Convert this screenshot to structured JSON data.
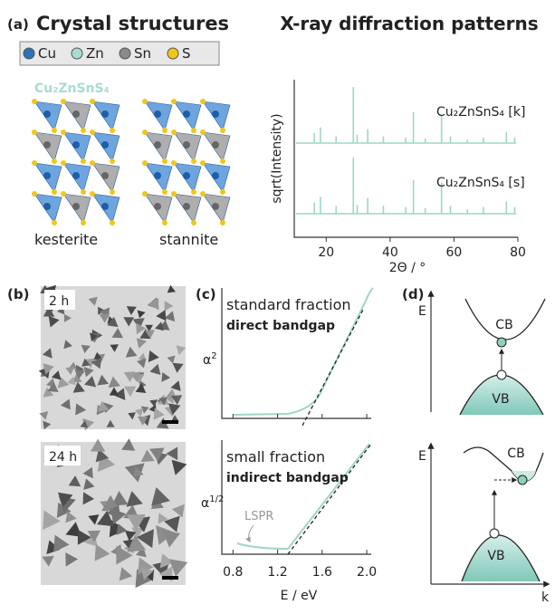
{
  "panel_a": {
    "label": "(a)",
    "title": "Crystal structures",
    "legend": [
      "Cu",
      "Zn",
      "Sn",
      "S"
    ],
    "formula": "Cu₂ZnSnS₄",
    "structures": [
      "kesterite",
      "stannite"
    ]
  },
  "panel_xrd": {
    "title": "X-ray diffraction patterns",
    "ylabel": "sqrt(Intensity)",
    "xlabel": "2Θ / °",
    "xlim": [
      10,
      80
    ],
    "xticks": [
      20,
      40,
      60,
      80
    ],
    "patterns": [
      {
        "label": "Cu₂ZnSnS₄ [k]",
        "positions": [
          16.3,
          18.2,
          23.1,
          28.5,
          29.7,
          33.0,
          37.9,
          44.9,
          47.3,
          51.0,
          56.1,
          58.9,
          64.2,
          69.2,
          76.4,
          79.0
        ],
        "heights": [
          0.18,
          0.28,
          0.12,
          1.0,
          0.15,
          0.25,
          0.12,
          0.1,
          0.55,
          0.08,
          0.5,
          0.12,
          0.06,
          0.1,
          0.2,
          0.1
        ]
      },
      {
        "label": "Cu₂ZnSnS₄ [s]",
        "positions": [
          16.3,
          18.2,
          23.1,
          28.5,
          29.7,
          33.0,
          37.9,
          44.9,
          47.3,
          51.0,
          56.1,
          58.9,
          64.2,
          69.2,
          76.4,
          79.0
        ],
        "heights": [
          0.2,
          0.3,
          0.14,
          1.0,
          0.16,
          0.28,
          0.14,
          0.12,
          0.6,
          0.1,
          0.55,
          0.14,
          0.08,
          0.12,
          0.22,
          0.12
        ]
      }
    ]
  },
  "panel_b": {
    "label": "(b)",
    "images": [
      "2 h",
      "24 h"
    ]
  },
  "panel_c": {
    "label": "(c)",
    "xlabel": "E / eV",
    "xlim": [
      0.7,
      2.04
    ],
    "xticks": [
      {
        "value": 0.8,
        "label": "0.8"
      },
      {
        "value": 1.2,
        "label": "1.2"
      },
      {
        "value": 1.6,
        "label": "1.6"
      },
      {
        "value": 2,
        "label": "2.0"
      }
    ],
    "plots": [
      {
        "title": "standard fraction",
        "subtitle": "direct bandgap",
        "ylabel": {
          "base": "α",
          "sup": "2"
        }
      },
      {
        "title": "small fraction",
        "subtitle": "indirect bandgap",
        "ylabel": {
          "base": "α",
          "sup": "1/2"
        },
        "annotation": "LSPR"
      }
    ]
  },
  "panel_d": {
    "label": "(d)",
    "diagrams": [
      {
        "axis": "E",
        "cb": "CB",
        "vb": "VB"
      },
      {
        "axis": "E",
        "cb": "CB",
        "vb": "VB",
        "kaxis": "k"
      }
    ]
  }
}
